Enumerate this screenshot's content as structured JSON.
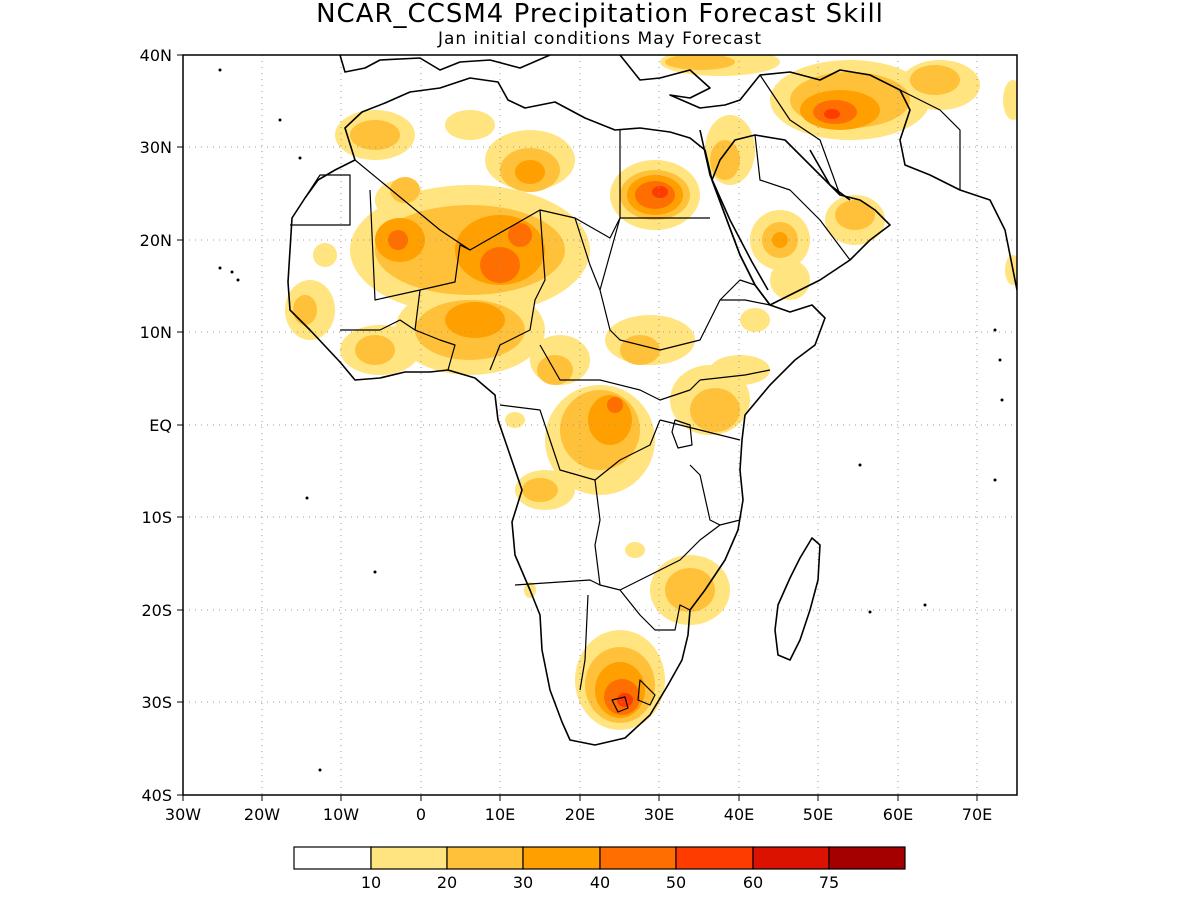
{
  "map": {
    "title": "NCAR_CCSM4 Precipitation Forecast Skill",
    "subtitle": "Jan initial conditions  May Forecast",
    "lon_ticks": [
      "30W",
      "20W",
      "10W",
      "0",
      "10E",
      "20E",
      "30E",
      "40E",
      "50E",
      "60E",
      "70E"
    ],
    "lat_ticks": [
      "40N",
      "30N",
      "20N",
      "10N",
      "EQ",
      "10S",
      "20S",
      "30S",
      "40S"
    ],
    "lon_range": [
      -30,
      75
    ],
    "lat_range": [
      -40,
      40
    ]
  },
  "colorbar": {
    "colors": [
      "#ffffff",
      "#ffe47f",
      "#ffc13a",
      "#ff9f00",
      "#ff6e00",
      "#ff3c00",
      "#db1200",
      "#a50000"
    ],
    "labels": [
      "10",
      "20",
      "30",
      "40",
      "50",
      "60",
      "75"
    ]
  }
}
